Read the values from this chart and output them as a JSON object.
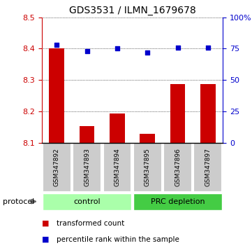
{
  "title": "GDS3531 / ILMN_1679678",
  "samples": [
    "GSM347892",
    "GSM347893",
    "GSM347894",
    "GSM347895",
    "GSM347896",
    "GSM347897"
  ],
  "bar_values": [
    8.4,
    8.152,
    8.193,
    8.128,
    8.288,
    8.288
  ],
  "bar_base": 8.1,
  "percentile_values": [
    78,
    73,
    75,
    72,
    76,
    76
  ],
  "bar_color": "#cc0000",
  "dot_color": "#0000cc",
  "ylim_left": [
    8.1,
    8.5
  ],
  "ylim_right": [
    0,
    100
  ],
  "yticks_left": [
    8.1,
    8.2,
    8.3,
    8.4,
    8.5
  ],
  "yticks_right": [
    0,
    25,
    50,
    75,
    100
  ],
  "ytick_labels_right": [
    "0",
    "25",
    "50",
    "75",
    "100%"
  ],
  "groups": [
    {
      "label": "control",
      "start": 0,
      "end": 3,
      "color": "#aaffaa"
    },
    {
      "label": "PRC depletion",
      "start": 3,
      "end": 6,
      "color": "#44cc44"
    }
  ],
  "legend_items": [
    {
      "color": "#cc0000",
      "label": "transformed count"
    },
    {
      "color": "#0000cc",
      "label": "percentile rank within the sample"
    }
  ],
  "protocol_label": "protocol",
  "tick_color_left": "#cc0000",
  "tick_color_right": "#0000cc",
  "grid_color": "#000000"
}
